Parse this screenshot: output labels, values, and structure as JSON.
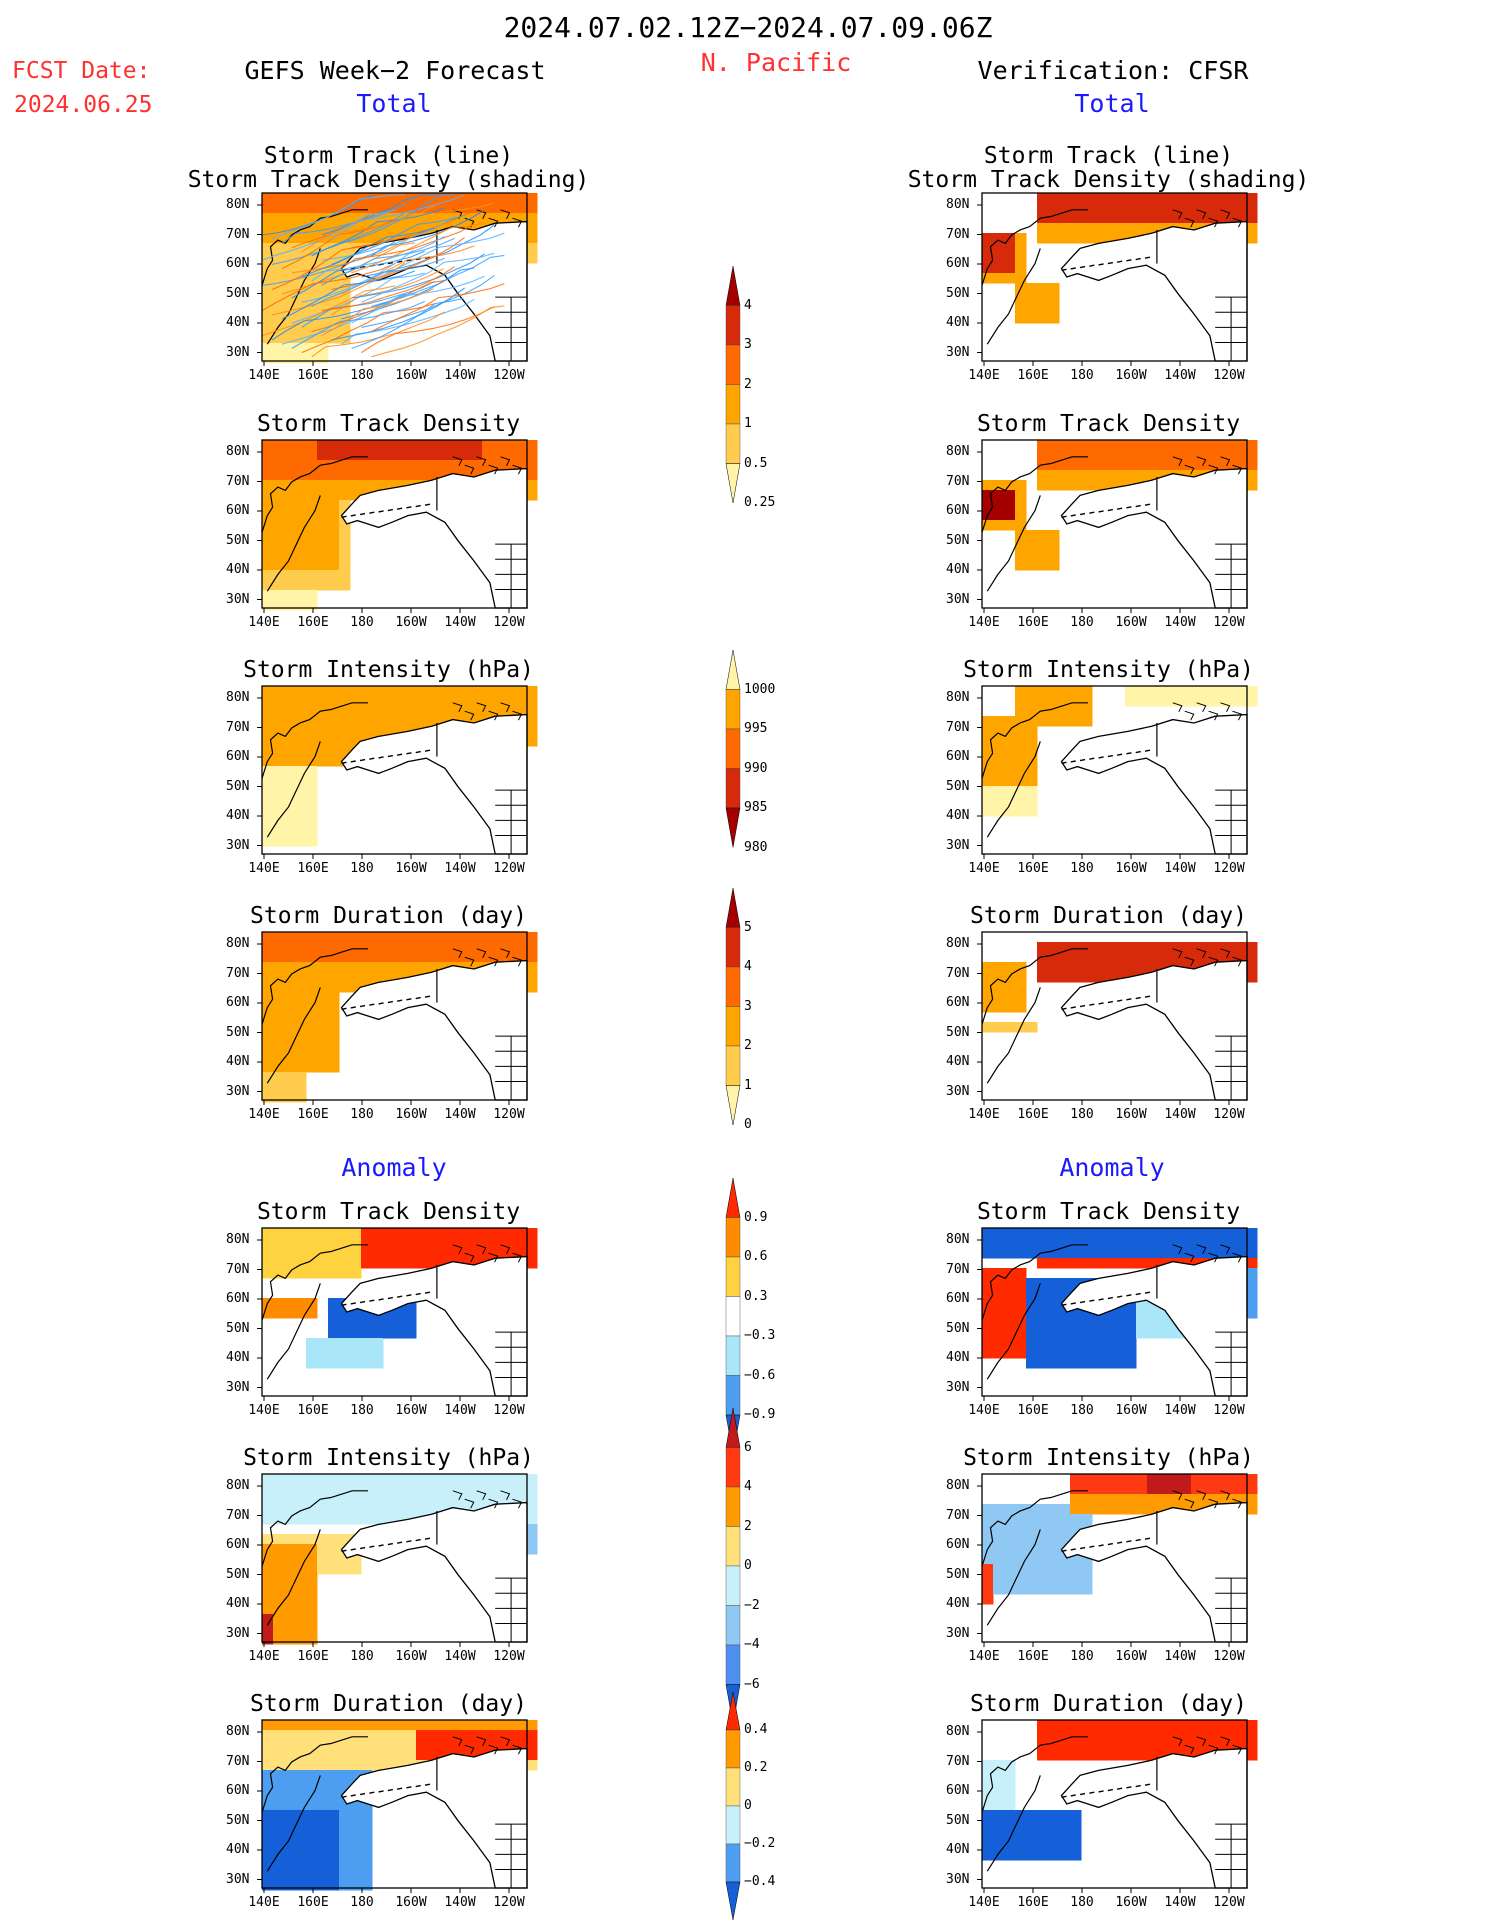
{
  "header": {
    "date_range": "2024.07.02.12Z−2024.07.09.06Z",
    "region": "N. Pacific",
    "fcst_label": "FCST Date:",
    "fcst_date": "2024.06.25",
    "left_title": "GEFS Week−2 Forecast",
    "right_title": "Verification: CFSR",
    "total_label": "Total",
    "anomaly_label": "Anomaly"
  },
  "colors": {
    "fcst_red": "#ff3030",
    "section_blue": "#1a1aff",
    "land_white": "#ffffff",
    "coast_black": "#000000"
  },
  "chart_data": [
    {
      "id": "fc_track",
      "type": "heatmap",
      "panel": "forecast",
      "title_line1": "Storm Track (line)",
      "title_line2": "Storm Track Density (shading)",
      "scale": "density"
    },
    {
      "id": "fc_density",
      "type": "heatmap",
      "panel": "forecast",
      "title": "Storm Track Density",
      "scale": "density"
    },
    {
      "id": "fc_intensity",
      "type": "heatmap",
      "panel": "forecast",
      "title": "Storm Intensity (hPa)",
      "scale": "intensity"
    },
    {
      "id": "fc_duration",
      "type": "heatmap",
      "panel": "forecast",
      "title": "Storm Duration (day)",
      "scale": "duration"
    },
    {
      "id": "fc_anom_density",
      "type": "heatmap",
      "panel": "forecast",
      "title": "Storm Track Density",
      "scale": "anom_density"
    },
    {
      "id": "fc_anom_intensity",
      "type": "heatmap",
      "panel": "forecast",
      "title": "Storm Intensity (hPa)",
      "scale": "anom_intensity"
    },
    {
      "id": "fc_anom_duration",
      "type": "heatmap",
      "panel": "forecast",
      "title": "Storm Duration (day)",
      "scale": "anom_duration"
    },
    {
      "id": "vf_track",
      "type": "heatmap",
      "panel": "verification",
      "title_line1": "Storm Track (line)",
      "title_line2": "Storm Track Density (shading)",
      "scale": "density"
    },
    {
      "id": "vf_density",
      "type": "heatmap",
      "panel": "verification",
      "title": "Storm Track Density",
      "scale": "density"
    },
    {
      "id": "vf_intensity",
      "type": "heatmap",
      "panel": "verification",
      "title": "Storm Intensity (hPa)",
      "scale": "intensity"
    },
    {
      "id": "vf_duration",
      "type": "heatmap",
      "panel": "verification",
      "title": "Storm Duration (day)",
      "scale": "duration"
    },
    {
      "id": "vf_anom_density",
      "type": "heatmap",
      "panel": "verification",
      "title": "Storm Track Density",
      "scale": "anom_density"
    },
    {
      "id": "vf_anom_intensity",
      "type": "heatmap",
      "panel": "verification",
      "title": "Storm Intensity (hPa)",
      "scale": "anom_intensity"
    },
    {
      "id": "vf_anom_duration",
      "type": "heatmap",
      "panel": "verification",
      "title": "Storm Duration (day)",
      "scale": "anom_duration"
    }
  ],
  "axes": {
    "lat_ticks": [
      "80N",
      "70N",
      "60N",
      "50N",
      "40N",
      "30N"
    ],
    "lon_ticks": [
      "140E",
      "160E",
      "180",
      "160W",
      "140W",
      "120W"
    ]
  },
  "colorbars": {
    "density": {
      "labels": [
        "4",
        "3",
        "2",
        "1",
        "0.5",
        "0.25"
      ],
      "colors": [
        "#a50000",
        "#d62a0a",
        "#ff6a00",
        "#ffa500",
        "#ffcc4d",
        "#fff4a8"
      ]
    },
    "intensity": {
      "labels": [
        "1000",
        "995",
        "990",
        "985",
        "980"
      ],
      "colors": [
        "#fff4a8",
        "#ffa500",
        "#ff6a00",
        "#d62a0a",
        "#a50000"
      ]
    },
    "duration": {
      "labels": [
        "5",
        "4",
        "3",
        "2",
        "1",
        "0"
      ],
      "colors": [
        "#a50000",
        "#d62a0a",
        "#ff6a00",
        "#ffa500",
        "#ffcc4d",
        "#fff4a8"
      ]
    },
    "anom_density": {
      "labels": [
        "0.9",
        "0.6",
        "0.3",
        "−0.3",
        "−0.6",
        "−0.9"
      ],
      "colors": [
        "#ff2a00",
        "#ff8c00",
        "#ffd23f",
        "#ffffff",
        "#a8e6f8",
        "#4d9df0",
        "#1560d8"
      ]
    },
    "anom_intensity": {
      "labels": [
        "6",
        "4",
        "2",
        "0",
        "−2",
        "−4",
        "−6"
      ],
      "colors": [
        "#c01a1a",
        "#ff3a12",
        "#ff9a00",
        "#ffe07a",
        "#c8f0fa",
        "#90c8f4",
        "#4d90f0",
        "#1560d8"
      ]
    },
    "anom_duration": {
      "labels": [
        "0.4",
        "0.2",
        "0",
        "−0.2",
        "−0.4"
      ],
      "colors": [
        "#ff2a00",
        "#ff9a00",
        "#ffe07a",
        "#c8f0fa",
        "#4d9df0",
        "#1560d8"
      ]
    }
  }
}
